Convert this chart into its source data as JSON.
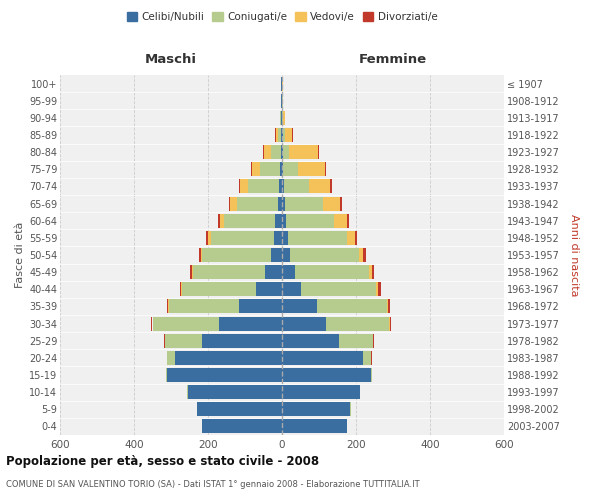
{
  "age_groups": [
    "0-4",
    "5-9",
    "10-14",
    "15-19",
    "20-24",
    "25-29",
    "30-34",
    "35-39",
    "40-44",
    "45-49",
    "50-54",
    "55-59",
    "60-64",
    "65-69",
    "70-74",
    "75-79",
    "80-84",
    "85-89",
    "90-94",
    "95-99",
    "100+"
  ],
  "birth_years": [
    "2003-2007",
    "1998-2002",
    "1993-1997",
    "1988-1992",
    "1983-1987",
    "1978-1982",
    "1973-1977",
    "1968-1972",
    "1963-1967",
    "1958-1962",
    "1953-1957",
    "1948-1952",
    "1943-1947",
    "1938-1942",
    "1933-1937",
    "1928-1932",
    "1923-1927",
    "1918-1922",
    "1913-1917",
    "1908-1912",
    "≤ 1907"
  ],
  "maschi_celibi": [
    215,
    230,
    255,
    310,
    290,
    215,
    170,
    115,
    70,
    45,
    30,
    22,
    18,
    12,
    8,
    5,
    3,
    4,
    2,
    2,
    2
  ],
  "maschi_coniugati": [
    1,
    1,
    2,
    3,
    20,
    100,
    180,
    190,
    200,
    195,
    185,
    170,
    140,
    110,
    85,
    55,
    28,
    8,
    3,
    1,
    1
  ],
  "maschi_vedovi": [
    0,
    0,
    0,
    0,
    1,
    2,
    2,
    2,
    2,
    3,
    5,
    8,
    10,
    18,
    20,
    22,
    18,
    5,
    1,
    0,
    0
  ],
  "maschi_divorziati": [
    0,
    0,
    0,
    0,
    1,
    2,
    3,
    5,
    5,
    5,
    5,
    6,
    5,
    4,
    4,
    3,
    2,
    1,
    0,
    0,
    0
  ],
  "femmine_celibi": [
    175,
    185,
    210,
    240,
    220,
    155,
    120,
    95,
    50,
    35,
    22,
    15,
    12,
    8,
    5,
    3,
    2,
    3,
    1,
    1,
    1
  ],
  "femmine_coniugati": [
    1,
    1,
    2,
    4,
    20,
    90,
    170,
    188,
    205,
    200,
    185,
    162,
    128,
    102,
    68,
    40,
    18,
    5,
    2,
    1,
    0
  ],
  "femmine_vedovi": [
    0,
    0,
    0,
    0,
    1,
    2,
    2,
    3,
    5,
    8,
    12,
    20,
    35,
    48,
    58,
    72,
    78,
    20,
    5,
    2,
    1
  ],
  "femmine_divorziati": [
    0,
    0,
    0,
    0,
    1,
    2,
    3,
    5,
    8,
    5,
    7,
    7,
    5,
    3,
    3,
    3,
    1,
    1,
    0,
    0,
    0
  ],
  "color_celibi": "#3a6da0",
  "color_coniugati": "#b5cc8e",
  "color_vedovi": "#f5c25a",
  "color_divorziati": "#c0392b",
  "title": "Popolazione per età, sesso e stato civile - 2008",
  "subtitle": "COMUNE DI SAN VALENTINO TORIO (SA) - Dati ISTAT 1° gennaio 2008 - Elaborazione TUTTITALIA.IT",
  "xlabel_left": "Maschi",
  "xlabel_right": "Femmine",
  "ylabel_left": "Fasce di età",
  "ylabel_right": "Anni di nascita",
  "xlim": 600,
  "bg_color": "#ffffff",
  "plot_bg": "#f0f0f0",
  "grid_color": "#cccccc"
}
